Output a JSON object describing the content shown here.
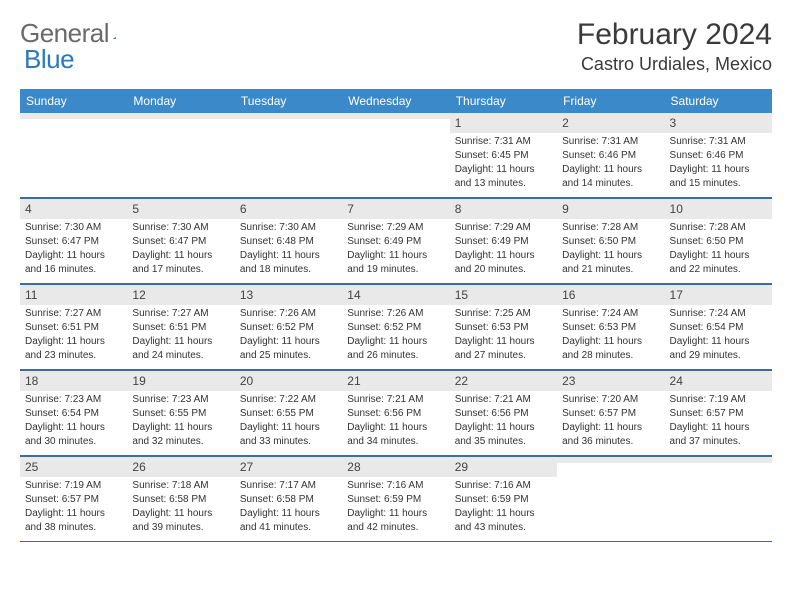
{
  "logo": {
    "word1": "General",
    "word2": "Blue"
  },
  "title": "February 2024",
  "location": "Castro Urdiales, Mexico",
  "header_bg": "#3b89c9",
  "days": [
    "Sunday",
    "Monday",
    "Tuesday",
    "Wednesday",
    "Thursday",
    "Friday",
    "Saturday"
  ],
  "weeks": [
    [
      {
        "date": "",
        "sunrise": "",
        "sunset": "",
        "daylight": ""
      },
      {
        "date": "",
        "sunrise": "",
        "sunset": "",
        "daylight": ""
      },
      {
        "date": "",
        "sunrise": "",
        "sunset": "",
        "daylight": ""
      },
      {
        "date": "",
        "sunrise": "",
        "sunset": "",
        "daylight": ""
      },
      {
        "date": "1",
        "sunrise": "Sunrise: 7:31 AM",
        "sunset": "Sunset: 6:45 PM",
        "daylight": "Daylight: 11 hours and 13 minutes."
      },
      {
        "date": "2",
        "sunrise": "Sunrise: 7:31 AM",
        "sunset": "Sunset: 6:46 PM",
        "daylight": "Daylight: 11 hours and 14 minutes."
      },
      {
        "date": "3",
        "sunrise": "Sunrise: 7:31 AM",
        "sunset": "Sunset: 6:46 PM",
        "daylight": "Daylight: 11 hours and 15 minutes."
      }
    ],
    [
      {
        "date": "4",
        "sunrise": "Sunrise: 7:30 AM",
        "sunset": "Sunset: 6:47 PM",
        "daylight": "Daylight: 11 hours and 16 minutes."
      },
      {
        "date": "5",
        "sunrise": "Sunrise: 7:30 AM",
        "sunset": "Sunset: 6:47 PM",
        "daylight": "Daylight: 11 hours and 17 minutes."
      },
      {
        "date": "6",
        "sunrise": "Sunrise: 7:30 AM",
        "sunset": "Sunset: 6:48 PM",
        "daylight": "Daylight: 11 hours and 18 minutes."
      },
      {
        "date": "7",
        "sunrise": "Sunrise: 7:29 AM",
        "sunset": "Sunset: 6:49 PM",
        "daylight": "Daylight: 11 hours and 19 minutes."
      },
      {
        "date": "8",
        "sunrise": "Sunrise: 7:29 AM",
        "sunset": "Sunset: 6:49 PM",
        "daylight": "Daylight: 11 hours and 20 minutes."
      },
      {
        "date": "9",
        "sunrise": "Sunrise: 7:28 AM",
        "sunset": "Sunset: 6:50 PM",
        "daylight": "Daylight: 11 hours and 21 minutes."
      },
      {
        "date": "10",
        "sunrise": "Sunrise: 7:28 AM",
        "sunset": "Sunset: 6:50 PM",
        "daylight": "Daylight: 11 hours and 22 minutes."
      }
    ],
    [
      {
        "date": "11",
        "sunrise": "Sunrise: 7:27 AM",
        "sunset": "Sunset: 6:51 PM",
        "daylight": "Daylight: 11 hours and 23 minutes."
      },
      {
        "date": "12",
        "sunrise": "Sunrise: 7:27 AM",
        "sunset": "Sunset: 6:51 PM",
        "daylight": "Daylight: 11 hours and 24 minutes."
      },
      {
        "date": "13",
        "sunrise": "Sunrise: 7:26 AM",
        "sunset": "Sunset: 6:52 PM",
        "daylight": "Daylight: 11 hours and 25 minutes."
      },
      {
        "date": "14",
        "sunrise": "Sunrise: 7:26 AM",
        "sunset": "Sunset: 6:52 PM",
        "daylight": "Daylight: 11 hours and 26 minutes."
      },
      {
        "date": "15",
        "sunrise": "Sunrise: 7:25 AM",
        "sunset": "Sunset: 6:53 PM",
        "daylight": "Daylight: 11 hours and 27 minutes."
      },
      {
        "date": "16",
        "sunrise": "Sunrise: 7:24 AM",
        "sunset": "Sunset: 6:53 PM",
        "daylight": "Daylight: 11 hours and 28 minutes."
      },
      {
        "date": "17",
        "sunrise": "Sunrise: 7:24 AM",
        "sunset": "Sunset: 6:54 PM",
        "daylight": "Daylight: 11 hours and 29 minutes."
      }
    ],
    [
      {
        "date": "18",
        "sunrise": "Sunrise: 7:23 AM",
        "sunset": "Sunset: 6:54 PM",
        "daylight": "Daylight: 11 hours and 30 minutes."
      },
      {
        "date": "19",
        "sunrise": "Sunrise: 7:23 AM",
        "sunset": "Sunset: 6:55 PM",
        "daylight": "Daylight: 11 hours and 32 minutes."
      },
      {
        "date": "20",
        "sunrise": "Sunrise: 7:22 AM",
        "sunset": "Sunset: 6:55 PM",
        "daylight": "Daylight: 11 hours and 33 minutes."
      },
      {
        "date": "21",
        "sunrise": "Sunrise: 7:21 AM",
        "sunset": "Sunset: 6:56 PM",
        "daylight": "Daylight: 11 hours and 34 minutes."
      },
      {
        "date": "22",
        "sunrise": "Sunrise: 7:21 AM",
        "sunset": "Sunset: 6:56 PM",
        "daylight": "Daylight: 11 hours and 35 minutes."
      },
      {
        "date": "23",
        "sunrise": "Sunrise: 7:20 AM",
        "sunset": "Sunset: 6:57 PM",
        "daylight": "Daylight: 11 hours and 36 minutes."
      },
      {
        "date": "24",
        "sunrise": "Sunrise: 7:19 AM",
        "sunset": "Sunset: 6:57 PM",
        "daylight": "Daylight: 11 hours and 37 minutes."
      }
    ],
    [
      {
        "date": "25",
        "sunrise": "Sunrise: 7:19 AM",
        "sunset": "Sunset: 6:57 PM",
        "daylight": "Daylight: 11 hours and 38 minutes."
      },
      {
        "date": "26",
        "sunrise": "Sunrise: 7:18 AM",
        "sunset": "Sunset: 6:58 PM",
        "daylight": "Daylight: 11 hours and 39 minutes."
      },
      {
        "date": "27",
        "sunrise": "Sunrise: 7:17 AM",
        "sunset": "Sunset: 6:58 PM",
        "daylight": "Daylight: 11 hours and 41 minutes."
      },
      {
        "date": "28",
        "sunrise": "Sunrise: 7:16 AM",
        "sunset": "Sunset: 6:59 PM",
        "daylight": "Daylight: 11 hours and 42 minutes."
      },
      {
        "date": "29",
        "sunrise": "Sunrise: 7:16 AM",
        "sunset": "Sunset: 6:59 PM",
        "daylight": "Daylight: 11 hours and 43 minutes."
      },
      {
        "date": "",
        "sunrise": "",
        "sunset": "",
        "daylight": ""
      },
      {
        "date": "",
        "sunrise": "",
        "sunset": "",
        "daylight": ""
      }
    ]
  ]
}
